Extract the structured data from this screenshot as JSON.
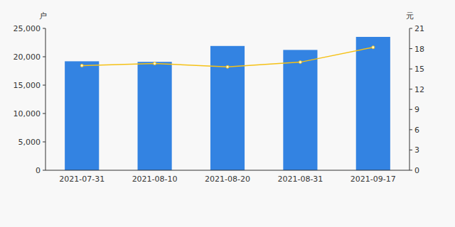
{
  "chart_data": {
    "type": "bar",
    "ylabel": "户",
    "y2label": "元",
    "categories": [
      "2021-07-31",
      "2021-08-10",
      "2021-08-20",
      "2021-08-31",
      "2021-09-17"
    ],
    "series": [
      {
        "type": "bar",
        "color": "#3383e2",
        "values": [
          19200,
          19100,
          21900,
          21200,
          23500
        ]
      },
      {
        "type": "line",
        "axis": "y2",
        "color": "#f5c116",
        "marker": "circle",
        "values": [
          15.5,
          15.8,
          15.3,
          16.0,
          18.2
        ]
      }
    ],
    "ylim": [
      0,
      25000
    ],
    "yticks": [
      0,
      {
        "value": 5000,
        "label": "5,000"
      },
      {
        "value": 10000,
        "label": "10,000"
      },
      {
        "value": 15000,
        "label": "15,000"
      },
      {
        "value": 20000,
        "label": "20,000"
      },
      {
        "value": 25000,
        "label": "25,000"
      }
    ],
    "y2lim": [
      0,
      21
    ],
    "y2ticks": [
      0,
      3,
      6,
      9,
      12,
      15,
      18,
      21
    ],
    "grid": false
  }
}
